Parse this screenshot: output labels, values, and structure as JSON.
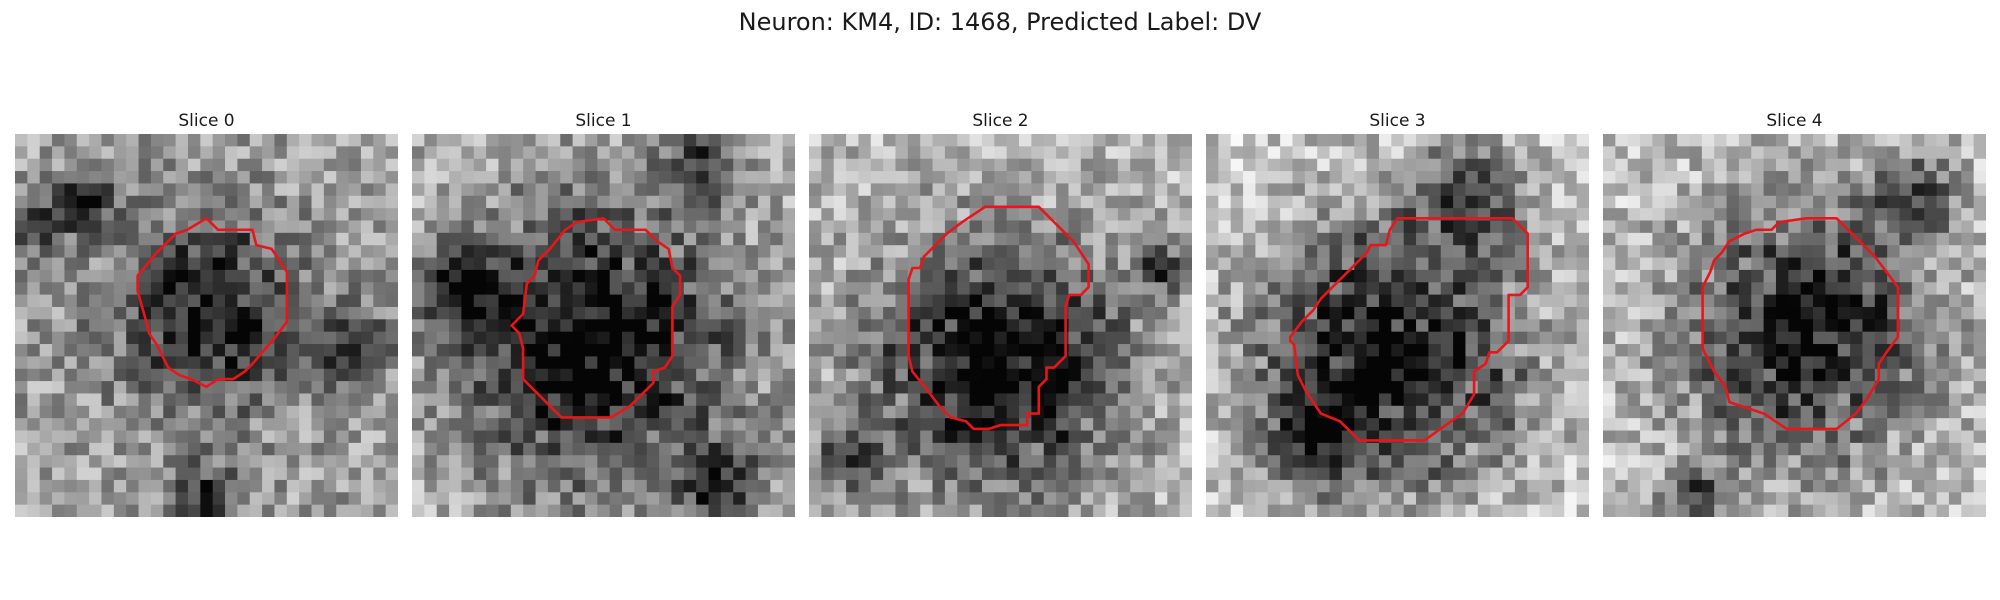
{
  "figure": {
    "title": "Neuron: KM4, ID: 1468, Predicted Label: DV"
  },
  "panels": [
    {
      "title": "Slice 0"
    },
    {
      "title": "Slice 1"
    },
    {
      "title": "Slice 2"
    },
    {
      "title": "Slice 3"
    },
    {
      "title": "Slice 4"
    }
  ],
  "colors": {
    "contour": "#e8161a",
    "background": "#ffffff"
  }
}
